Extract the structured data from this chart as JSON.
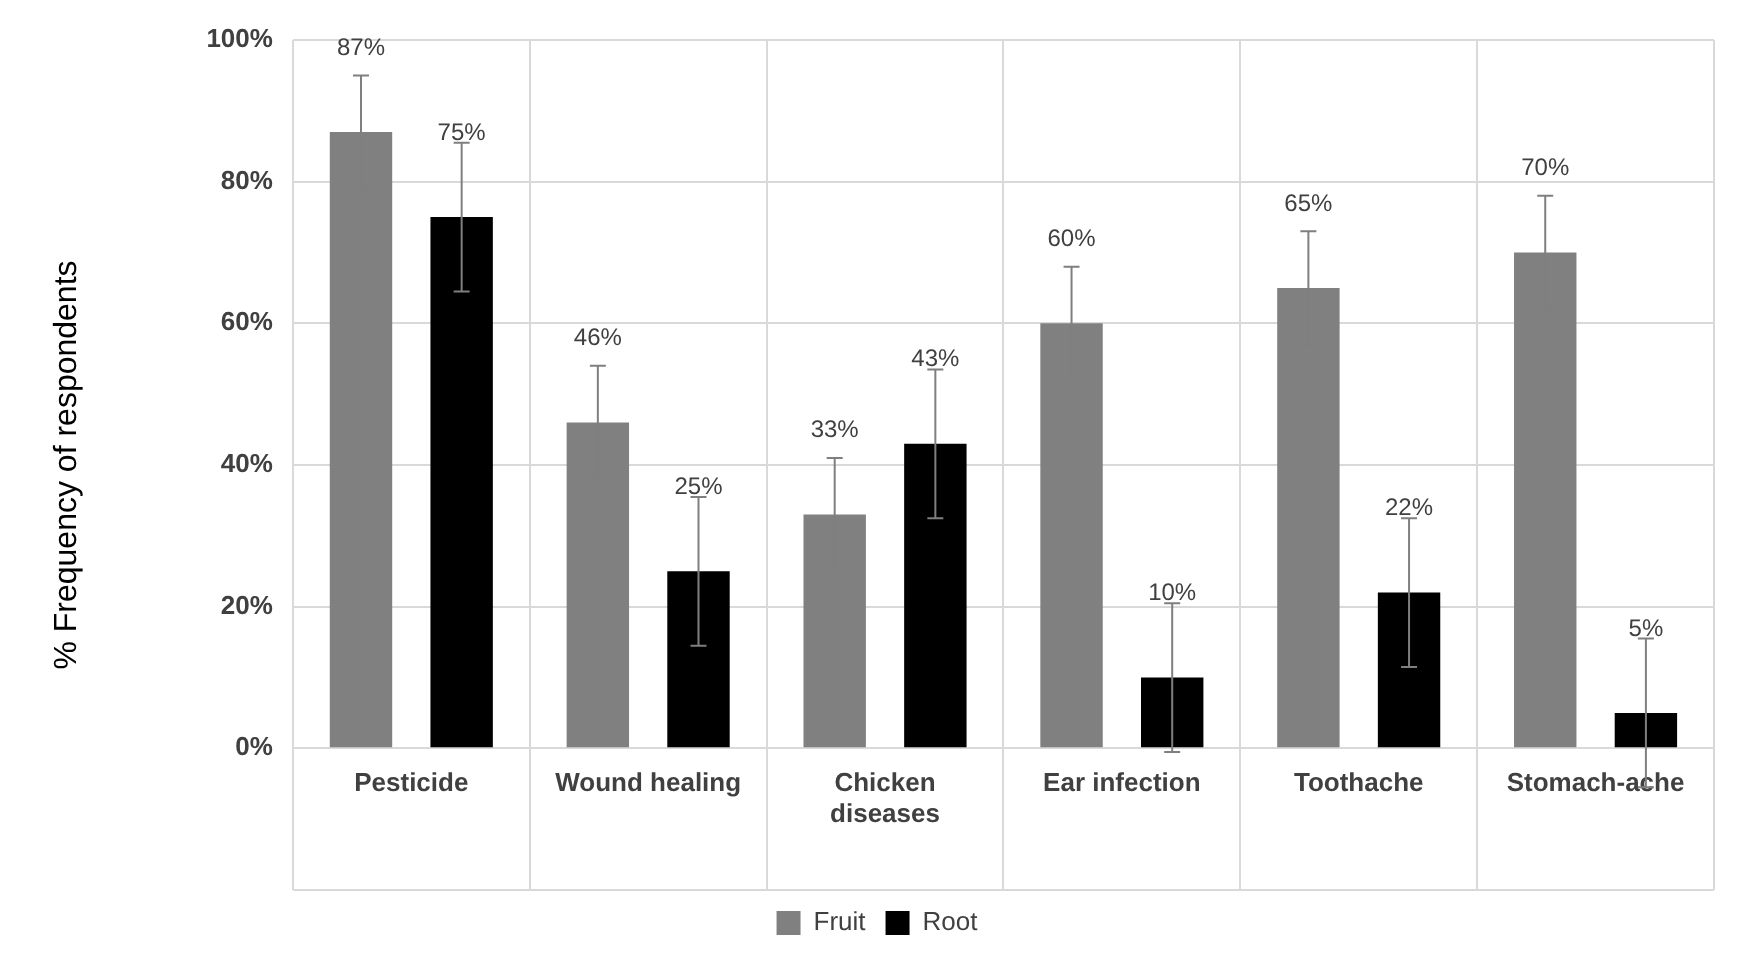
{
  "chart_data": {
    "type": "bar",
    "ylabel": "% Frequency of respondents",
    "categories": [
      "Pesticide",
      "Wound healing",
      "Chicken diseases",
      "Ear infection",
      "Toothache",
      "Stomach-ache"
    ],
    "series": [
      {
        "name": "Fruit",
        "color": "#808080",
        "values": [
          87,
          46,
          33,
          60,
          65,
          70
        ],
        "errors": [
          8,
          8,
          8,
          8,
          8,
          8
        ],
        "value_labels": [
          "87%",
          "46%",
          "33%",
          "60%",
          "65%",
          "70%"
        ]
      },
      {
        "name": "Root",
        "color": "#000000",
        "values": [
          75,
          25,
          43,
          10,
          22,
          5
        ],
        "errors": [
          10.5,
          10.5,
          10.5,
          10.5,
          10.5,
          10.5
        ],
        "value_labels": [
          "75%",
          "25%",
          "43%",
          "10%",
          "22%",
          "5%"
        ]
      }
    ],
    "ylim": [
      -20,
      100
    ],
    "yticks": [
      {
        "value": -20,
        "label": null
      },
      {
        "value": 0,
        "label": "0%"
      },
      {
        "value": 20,
        "label": "20%"
      },
      {
        "value": 40,
        "label": "40%"
      },
      {
        "value": 60,
        "label": "60%"
      },
      {
        "value": 80,
        "label": "80%"
      },
      {
        "value": 100,
        "label": "100%"
      }
    ],
    "grid": true,
    "legend": "bottom"
  }
}
